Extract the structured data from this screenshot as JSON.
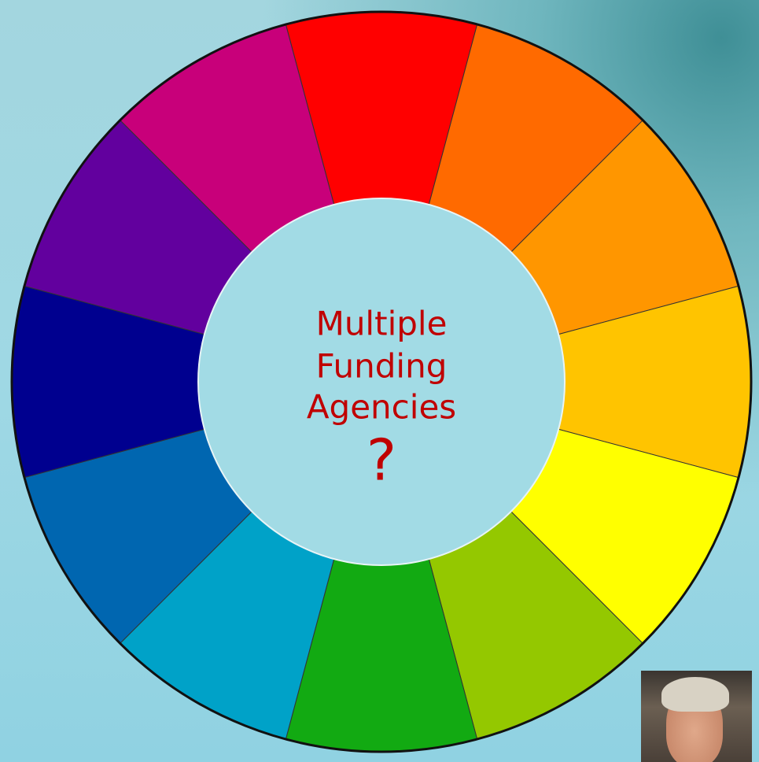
{
  "center_text": {
    "lines": [
      "Multiple",
      "Funding",
      "Agencies"
    ],
    "mark": "?"
  }
}
